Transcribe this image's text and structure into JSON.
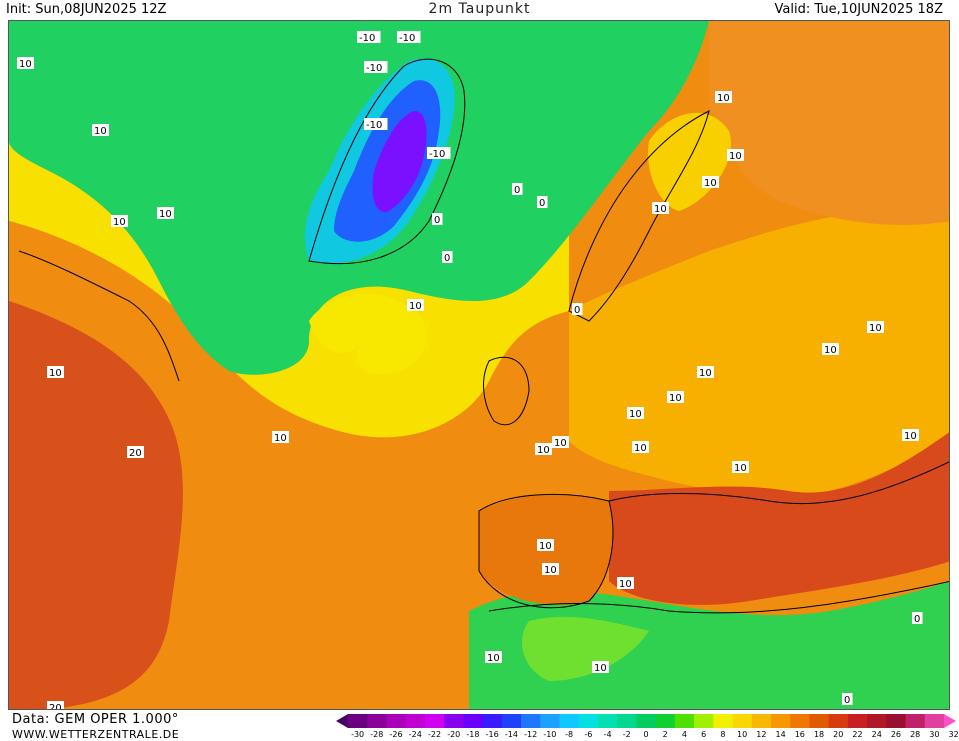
{
  "header": {
    "init": "Init: Sun,08JUN2025 12Z",
    "title": "2m Taupunkt",
    "valid": "Valid: Tue,10JUN2025 18Z"
  },
  "footer": {
    "data": "Data: GEM OPER 1.000°",
    "site": "WWW.WETTERZENTRALE.DE"
  },
  "legend": {
    "ticks": [
      "-30",
      "-28",
      "-26",
      "-24",
      "-22",
      "-20",
      "-18",
      "-16",
      "-14",
      "-12",
      "-10",
      "-8",
      "-6",
      "-4",
      "-2",
      "0",
      "2",
      "4",
      "6",
      "8",
      "10",
      "12",
      "14",
      "16",
      "18",
      "20",
      "22",
      "24",
      "26",
      "28",
      "30",
      "32"
    ],
    "colors": [
      "#4b0066",
      "#6a0080",
      "#8a0099",
      "#aa00b8",
      "#c000d0",
      "#d000f0",
      "#8800ee",
      "#6a00ff",
      "#3a1aff",
      "#2040ff",
      "#1e78ff",
      "#1ea0ff",
      "#10c8ff",
      "#00e0e0",
      "#00e0b0",
      "#00d890",
      "#00cc60",
      "#10d030",
      "#50e000",
      "#a0f000",
      "#f0f000",
      "#f8d800",
      "#f8b800",
      "#f89800",
      "#f07800",
      "#e05a00",
      "#d83a10",
      "#c82020",
      "#b01828",
      "#981030",
      "#c0206a",
      "#e040a0",
      "#ff50c8"
    ]
  },
  "map": {
    "contour_labels": [
      {
        "text": "10"
      },
      {
        "text": "10"
      },
      {
        "text": "10"
      },
      {
        "text": "10"
      },
      {
        "text": "10"
      },
      {
        "text": "20"
      },
      {
        "text": "20"
      },
      {
        "text": "10"
      },
      {
        "text": "10"
      },
      {
        "text": "10"
      },
      {
        "text": "10"
      },
      {
        "text": "10"
      },
      {
        "text": "10"
      },
      {
        "text": "10"
      },
      {
        "text": "10"
      },
      {
        "text": "0"
      },
      {
        "text": "0"
      },
      {
        "text": "0"
      },
      {
        "text": "0"
      },
      {
        "text": "0"
      },
      {
        "text": "-10"
      },
      {
        "text": "-10"
      },
      {
        "text": "-10"
      },
      {
        "text": "-10"
      },
      {
        "text": "-10"
      },
      {
        "text": "10"
      },
      {
        "text": "10"
      },
      {
        "text": "10"
      },
      {
        "text": "10"
      },
      {
        "text": "10"
      },
      {
        "text": "10"
      },
      {
        "text": "10"
      },
      {
        "text": "10"
      },
      {
        "text": "10"
      },
      {
        "text": "10"
      },
      {
        "text": "10"
      },
      {
        "text": "0"
      },
      {
        "text": "0"
      },
      {
        "text": "10"
      },
      {
        "text": "10"
      }
    ]
  }
}
